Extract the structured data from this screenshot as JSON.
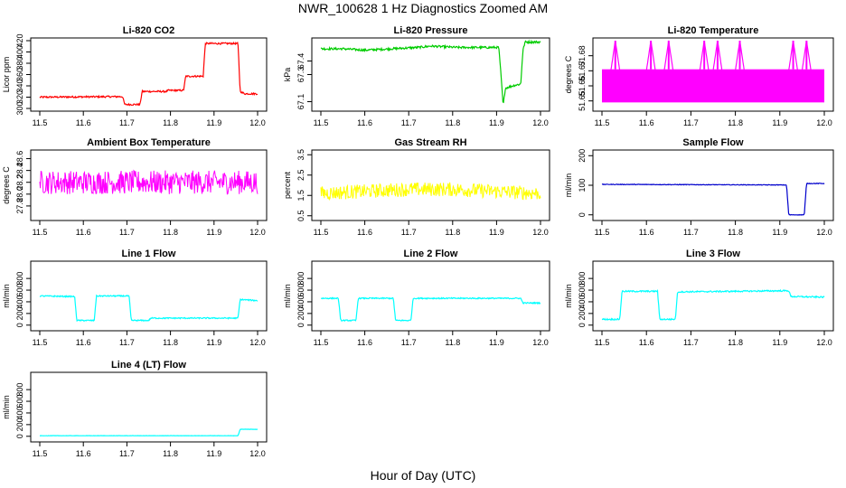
{
  "figure": {
    "title": "NWR_100628  1 Hz Diagnostics Zoomed AM",
    "xlabel": "Hour of Day (UTC)"
  },
  "chart_data": [
    {
      "type": "line",
      "title": "Li-820 CO2",
      "ylabel": "Licor ppm",
      "color": "#ff0000",
      "xlim": [
        11.5,
        12.0
      ],
      "xticks": [
        "11.5",
        "11.6",
        "11.7",
        "11.8",
        "11.9",
        "12.0"
      ],
      "ylim": [
        300,
        420
      ],
      "yticks": [
        "300",
        "320",
        "340",
        "360",
        "380",
        "400",
        "420"
      ],
      "noise": 1.5,
      "x": [
        11.5,
        11.69,
        11.695,
        11.73,
        11.735,
        11.79,
        11.795,
        11.83,
        11.835,
        11.875,
        11.88,
        11.955,
        11.96,
        11.97,
        12.0
      ],
      "y": [
        320,
        321,
        307,
        307,
        330,
        330,
        332,
        332,
        357,
        357,
        415,
        415,
        330,
        326,
        326
      ]
    },
    {
      "type": "line",
      "title": "Li-820 Pressure",
      "ylabel": "kPa",
      "color": "#00cc00",
      "xlim": [
        11.5,
        12.0
      ],
      "xticks": [
        "11.5",
        "11.6",
        "11.7",
        "11.8",
        "11.9",
        "12.0"
      ],
      "ylim": [
        67.05,
        67.55
      ],
      "yticks": [
        "67.1",
        "67.3",
        "67.4"
      ],
      "noise": 0.008,
      "x": [
        11.5,
        11.55,
        11.6,
        11.66,
        11.72,
        11.75,
        11.81,
        11.86,
        11.905,
        11.91,
        11.915,
        11.92,
        11.94,
        11.955,
        11.96,
        11.965,
        12.0
      ],
      "y": [
        67.49,
        67.49,
        67.48,
        67.49,
        67.5,
        67.51,
        67.5,
        67.5,
        67.5,
        67.3,
        67.07,
        67.2,
        67.22,
        67.23,
        67.48,
        67.54,
        67.54
      ]
    },
    {
      "type": "line",
      "title": "Li-820 Temperature",
      "ylabel": "degrees C",
      "color": "#ff00ff",
      "xlim": [
        11.5,
        12.0
      ],
      "xticks": [
        "11.5",
        "11.6",
        "11.7",
        "11.8",
        "11.9",
        "12.0"
      ],
      "ylim": [
        51.645,
        51.69
      ],
      "yticks": [
        "51.65",
        "51.66",
        "51.67",
        "51.68"
      ],
      "noise": 0,
      "x": [
        11.5,
        11.51,
        11.52,
        11.53,
        11.54,
        11.55,
        11.56,
        11.57,
        11.58,
        11.59,
        11.6,
        11.61,
        11.62,
        11.63,
        11.64,
        11.65,
        11.66,
        11.67,
        11.68,
        11.69,
        11.7,
        11.71,
        11.72,
        11.73,
        11.74,
        11.75,
        11.76,
        11.77,
        11.78,
        11.79,
        11.8,
        11.81,
        11.82,
        11.83,
        11.84,
        11.85,
        11.86,
        11.87,
        11.88,
        11.89,
        11.9,
        11.91,
        11.92,
        11.93,
        11.94,
        11.95,
        11.96,
        11.97,
        11.98,
        11.99,
        12.0
      ],
      "y": [
        51.67,
        51.67,
        51.67,
        51.69,
        51.67,
        51.67,
        51.67,
        51.67,
        51.67,
        51.67,
        51.67,
        51.69,
        51.67,
        51.67,
        51.67,
        51.69,
        51.67,
        51.67,
        51.67,
        51.67,
        51.67,
        51.67,
        51.67,
        51.69,
        51.67,
        51.67,
        51.69,
        51.67,
        51.67,
        51.67,
        51.67,
        51.69,
        51.67,
        51.67,
        51.67,
        51.67,
        51.67,
        51.67,
        51.67,
        51.67,
        51.67,
        51.67,
        51.67,
        51.69,
        51.67,
        51.67,
        51.69,
        51.67,
        51.67,
        51.67,
        51.67
      ],
      "band": [
        51.649,
        51.671
      ]
    },
    {
      "type": "line",
      "title": "Ambient Box Temperature",
      "ylabel": "degrees C",
      "color": "#ff00ff",
      "xlim": [
        11.5,
        12.0
      ],
      "xticks": [
        "11.5",
        "11.6",
        "11.7",
        "11.8",
        "11.9",
        "12.0"
      ],
      "ylim": [
        27.6,
        28.7
      ],
      "yticks": [
        "27.8",
        "28.0",
        "28.2",
        "28.4",
        "28.6"
      ],
      "noise": 0.2,
      "x": [
        11.5,
        11.6,
        11.7,
        11.8,
        11.9,
        12.0
      ],
      "y": [
        28.2,
        28.2,
        28.2,
        28.2,
        28.2,
        28.2
      ]
    },
    {
      "type": "line",
      "title": "Gas Stream RH",
      "ylabel": "percent",
      "color": "#ffff00",
      "xlim": [
        11.5,
        12.0
      ],
      "xticks": [
        "11.5",
        "11.6",
        "11.7",
        "11.8",
        "11.9",
        "12.0"
      ],
      "ylim": [
        0.4,
        3.6
      ],
      "yticks": [
        "0.5",
        "1.5",
        "2.5",
        "3.5"
      ],
      "noise": 0.35,
      "x": [
        11.5,
        11.6,
        11.7,
        11.8,
        11.9,
        12.0
      ],
      "y": [
        1.6,
        1.7,
        1.8,
        1.8,
        1.7,
        1.6
      ]
    },
    {
      "type": "line",
      "title": "Sample Flow",
      "ylabel": "ml/min",
      "color": "#0000cc",
      "xlim": [
        11.5,
        12.0
      ],
      "xticks": [
        "11.5",
        "11.6",
        "11.7",
        "11.8",
        "11.9",
        "12.0"
      ],
      "ylim": [
        -10,
        210
      ],
      "yticks": [
        "0",
        "100",
        "200"
      ],
      "noise": 1,
      "x": [
        11.5,
        11.915,
        11.92,
        11.955,
        11.96,
        12.0
      ],
      "y": [
        103,
        101,
        0,
        0,
        106,
        106
      ]
    },
    {
      "type": "line",
      "title": "Line 1 Flow",
      "ylabel": "ml/min",
      "color": "#00ffff",
      "xlim": [
        11.5,
        12.0
      ],
      "xticks": [
        "11.5",
        "11.6",
        "11.7",
        "11.8",
        "11.9",
        "12.0"
      ],
      "ylim": [
        -50,
        1050
      ],
      "yticks": [
        "0",
        "200",
        "400",
        "600",
        "800"
      ],
      "noise": 10,
      "x": [
        11.5,
        11.58,
        11.585,
        11.625,
        11.63,
        11.705,
        11.71,
        11.75,
        11.755,
        11.955,
        11.96,
        12.0
      ],
      "y": [
        500,
        490,
        80,
        80,
        500,
        500,
        80,
        80,
        120,
        120,
        440,
        420
      ]
    },
    {
      "type": "line",
      "title": "Line 2 Flow",
      "ylabel": "ml/min",
      "color": "#00ffff",
      "xlim": [
        11.5,
        12.0
      ],
      "xticks": [
        "11.5",
        "11.6",
        "11.7",
        "11.8",
        "11.9",
        "12.0"
      ],
      "ylim": [
        -50,
        1050
      ],
      "yticks": [
        "0",
        "200",
        "400",
        "600",
        "800"
      ],
      "noise": 10,
      "x": [
        11.5,
        11.54,
        11.545,
        11.58,
        11.585,
        11.665,
        11.67,
        11.705,
        11.71,
        11.955,
        11.96,
        12.0
      ],
      "y": [
        460,
        460,
        80,
        80,
        460,
        460,
        80,
        80,
        460,
        460,
        380,
        380
      ]
    },
    {
      "type": "line",
      "title": "Line 3 Flow",
      "ylabel": "ml/min",
      "color": "#00ffff",
      "xlim": [
        11.5,
        12.0
      ],
      "xticks": [
        "11.5",
        "11.6",
        "11.7",
        "11.8",
        "11.9",
        "12.0"
      ],
      "ylim": [
        -50,
        1050
      ],
      "yticks": [
        "0",
        "200",
        "400",
        "600",
        "800"
      ],
      "noise": 12,
      "x": [
        11.5,
        11.54,
        11.545,
        11.625,
        11.63,
        11.665,
        11.67,
        11.8,
        11.92,
        11.925,
        12.0
      ],
      "y": [
        100,
        100,
        580,
        580,
        100,
        100,
        570,
        580,
        590,
        490,
        480
      ]
    },
    {
      "type": "line",
      "title": "Line 4 (LT) Flow",
      "ylabel": "ml/min",
      "color": "#00ffff",
      "xlim": [
        11.5,
        12.0
      ],
      "xticks": [
        "11.5",
        "11.6",
        "11.7",
        "11.8",
        "11.9",
        "12.0"
      ],
      "ylim": [
        -50,
        1050
      ],
      "yticks": [
        "0",
        "200",
        "400",
        "600",
        "800"
      ],
      "noise": 2,
      "x": [
        11.5,
        11.955,
        11.96,
        12.0
      ],
      "y": [
        10,
        10,
        120,
        120
      ]
    }
  ]
}
